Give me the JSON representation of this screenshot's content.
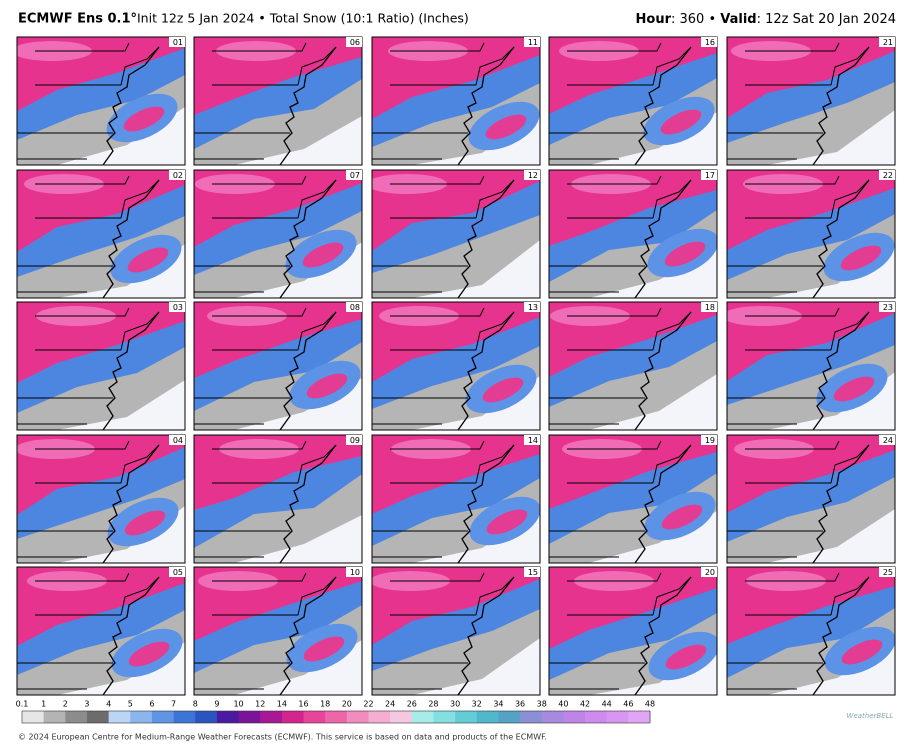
{
  "header": {
    "model": "ECMWF Ens 0.1°",
    "info": "Init 12z 5 Jan 2024 • Total Snow (10:1 Ratio) (Inches)",
    "hour_label": "Hour",
    "hour_text": ": 360 • ",
    "valid_label": "Valid",
    "valid_text": ": 12z Sat 20 Jan 2024"
  },
  "panels": [
    "01",
    "02",
    "03",
    "04",
    "05",
    "06",
    "07",
    "08",
    "09",
    "10",
    "11",
    "12",
    "13",
    "14",
    "15",
    "16",
    "17",
    "18",
    "19",
    "20",
    "21",
    "22",
    "23",
    "24",
    "25"
  ],
  "colorbar": {
    "labels": [
      0.1,
      1,
      2,
      3,
      4,
      5,
      6,
      7,
      8,
      9,
      10,
      12,
      14,
      16,
      18,
      20,
      22,
      24,
      26,
      28,
      30,
      32,
      34,
      36,
      38,
      40,
      42,
      44,
      46,
      48
    ],
    "colors": [
      "#e6e6e6",
      "#b4b4b4",
      "#8c8c8c",
      "#6c6c6c",
      "#bcd4f5",
      "#8cb5ee",
      "#5f95e4",
      "#3d74d8",
      "#2a55c0",
      "#4a1aa0",
      "#7a1599",
      "#a81894",
      "#d3258e",
      "#e8459a",
      "#ee66aa",
      "#f28bbf",
      "#f5aed2",
      "#f6c8e0",
      "#a8ece9",
      "#84dfe0",
      "#62cdd6",
      "#4fb8cc",
      "#55a2c5",
      "#8a8fd6",
      "#a889e0",
      "#bf84e8",
      "#cf8aee",
      "#d896f2",
      "#e0a6f5"
    ]
  },
  "logo": "WeatherBELL",
  "footer": "© 2024 European Centre for Medium-Range Weather Forecasts (ECMWF). This service is based on data and products of the ECMWF."
}
